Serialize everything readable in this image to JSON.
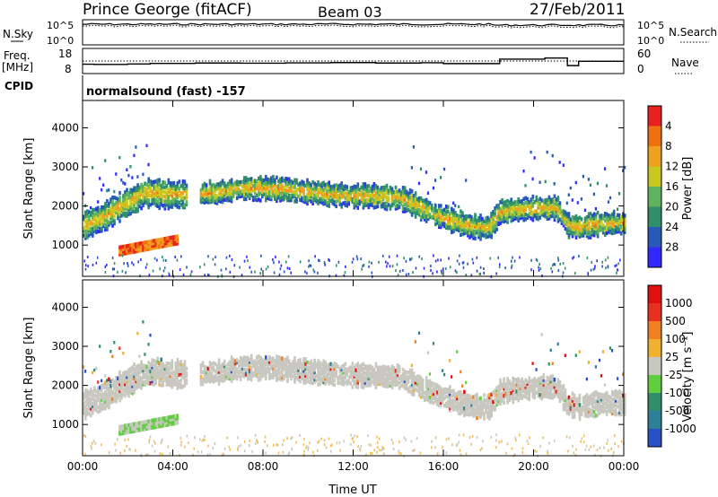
{
  "header": {
    "title": "Prince George (fitACF)",
    "beam": "Beam 03",
    "date": "27/Feb/2011"
  },
  "chart_data": [
    {
      "type": "line",
      "panel": "noise",
      "left_label": "N.Sky",
      "right_label": "N.Search",
      "left_ticks": [
        "10^5",
        "10^0"
      ],
      "right_ticks": [
        "10^5",
        "10^0"
      ]
    },
    {
      "type": "line",
      "panel": "frequency",
      "left_label_top": "Freq.",
      "left_label_bottom": "[MHz]",
      "left_ticks": [
        "18",
        "8"
      ],
      "right_label": "Nave",
      "right_ticks": [
        "60",
        "0"
      ],
      "freq_x_hours": [
        0,
        0.5,
        2,
        3,
        5,
        7,
        9,
        11,
        13,
        15,
        16,
        18.5,
        20.5,
        21.5,
        22,
        24
      ],
      "freq_mhz": [
        10.8,
        10.6,
        10.9,
        11.3,
        11.6,
        11.5,
        11.7,
        11.9,
        11.6,
        11.8,
        11.2,
        14.3,
        15.1,
        9.8,
        12.8,
        12.8
      ]
    },
    {
      "type": "text",
      "panel": "cpid",
      "label": "CPID",
      "mode": "normalsound (fast) -157"
    },
    {
      "type": "heatmap",
      "panel": "power",
      "ylabel": "Slant Range [km]",
      "y_ticks": [
        "1000",
        "2000",
        "3000",
        "4000"
      ],
      "ylim": [
        200,
        4700
      ],
      "colorbar_label": "Power [dB]",
      "colorbar_ticks": [
        "4",
        "8",
        "12",
        "16",
        "20",
        "24",
        "28"
      ],
      "colorbar_colors": [
        "#2f2aff",
        "#2858b8",
        "#2f8f6a",
        "#5fb35f",
        "#c8c820",
        "#f0a020",
        "#f07010",
        "#e82020"
      ],
      "echo_band": {
        "x_hours": [
          0,
          0.5,
          1,
          1.5,
          2,
          2.5,
          3,
          3.5,
          4,
          5,
          6,
          7,
          8,
          9,
          10,
          11,
          12,
          13,
          14,
          14.5,
          15,
          15.5,
          16,
          16.5,
          17,
          17.5,
          18,
          18.5,
          20,
          21,
          21.5,
          22,
          22.5,
          23,
          24
        ],
        "center_km": [
          1500,
          1600,
          1750,
          1950,
          2100,
          2250,
          2350,
          2300,
          2280,
          2300,
          2350,
          2450,
          2450,
          2420,
          2350,
          2300,
          2250,
          2250,
          2200,
          2100,
          1950,
          1800,
          1700,
          1600,
          1500,
          1450,
          1450,
          1850,
          1950,
          1950,
          1500,
          1450,
          1500,
          1550,
          1550
        ]
      }
    },
    {
      "type": "heatmap",
      "panel": "velocity",
      "ylabel": "Slant Range [km]",
      "y_ticks": [
        "1000",
        "2000",
        "3000",
        "4000"
      ],
      "ylim": [
        200,
        4700
      ],
      "colorbar_label": "Velocity [m s⁻¹]",
      "colorbar_ticks": [
        "1000",
        "500",
        "100",
        "25",
        "-25",
        "-100",
        "-500",
        "-1000"
      ],
      "colorbar_colors": [
        "#2850c8",
        "#2e7f9a",
        "#2f8f6a",
        "#5fcf3f",
        "#c8c8c0",
        "#f0b030",
        "#f08020",
        "#e83020",
        "#e01010"
      ],
      "xlabel": "Time UT",
      "x_ticks": [
        "00:00",
        "04:00",
        "08:00",
        "12:00",
        "16:00",
        "20:00",
        "00:00"
      ]
    }
  ]
}
